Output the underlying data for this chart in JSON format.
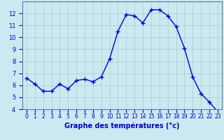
{
  "hours": [
    0,
    1,
    2,
    3,
    4,
    5,
    6,
    7,
    8,
    9,
    10,
    11,
    12,
    13,
    14,
    15,
    16,
    17,
    18,
    19,
    20,
    21,
    22,
    23
  ],
  "temperatures": [
    6.6,
    6.1,
    5.5,
    5.5,
    6.1,
    5.7,
    6.4,
    6.5,
    6.3,
    6.7,
    8.2,
    10.5,
    11.9,
    11.8,
    11.2,
    12.3,
    12.3,
    11.8,
    10.9,
    9.1,
    6.7,
    5.3,
    4.6,
    3.8
  ],
  "line_color": "#0000cc",
  "marker": "+",
  "marker_color": "#0000cc",
  "background_color": "#cce8f0",
  "grid_color": "#b0c8d0",
  "xlabel": "Graphe des températures (°c)",
  "tick_color": "#0000cc",
  "ylim": [
    4,
    13
  ],
  "xlim": [
    -0.5,
    23.5
  ],
  "yticks": [
    4,
    5,
    6,
    7,
    8,
    9,
    10,
    11,
    12
  ],
  "xtick_labels": [
    "0",
    "1",
    "2",
    "3",
    "4",
    "5",
    "6",
    "7",
    "8",
    "9",
    "10",
    "11",
    "12",
    "13",
    "14",
    "15",
    "16",
    "17",
    "18",
    "19",
    "20",
    "21",
    "22",
    "23"
  ]
}
